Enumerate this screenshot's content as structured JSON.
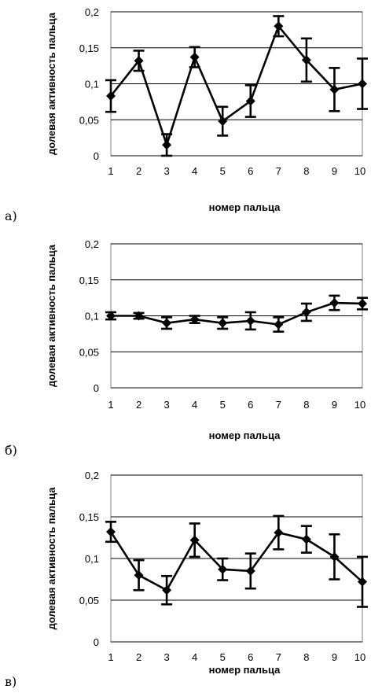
{
  "chart_data": [
    {
      "type": "line",
      "panel_label": "а)",
      "xlabel": "номер пальца",
      "ylabel": "долевая активность пальца",
      "x": [
        "1",
        "2",
        "3",
        "4",
        "5",
        "6",
        "7",
        "8",
        "9",
        "10"
      ],
      "y_ticks": [
        "0",
        "0,05",
        "0,1",
        "0,15",
        "0,2"
      ],
      "ylim": [
        0,
        0.2
      ],
      "grid": "horizontal",
      "series": [
        {
          "values": [
            0.083,
            0.132,
            0.015,
            0.137,
            0.048,
            0.076,
            0.18,
            0.133,
            0.092,
            0.1
          ],
          "error": [
            0.022,
            0.014,
            0.015,
            0.014,
            0.02,
            0.022,
            0.014,
            0.03,
            0.03,
            0.035
          ]
        }
      ]
    },
    {
      "type": "line",
      "panel_label": "б)",
      "xlabel": "номер пальца",
      "ylabel": "долевая активность пальца",
      "x": [
        "1",
        "2",
        "3",
        "4",
        "5",
        "6",
        "7",
        "8",
        "9",
        "10"
      ],
      "y_ticks": [
        "0",
        "0,05",
        "0,1",
        "0,15",
        "0,2"
      ],
      "ylim": [
        0,
        0.2
      ],
      "grid": "horizontal",
      "series": [
        {
          "values": [
            0.1,
            0.1,
            0.09,
            0.095,
            0.09,
            0.093,
            0.088,
            0.105,
            0.118,
            0.117
          ],
          "error": [
            0.005,
            0.004,
            0.008,
            0.005,
            0.008,
            0.012,
            0.01,
            0.012,
            0.01,
            0.008
          ]
        }
      ]
    },
    {
      "type": "line",
      "panel_label": "в)",
      "xlabel": "номер пальца",
      "ylabel": "долевая активность пальца",
      "x": [
        "1",
        "2",
        "3",
        "4",
        "5",
        "6",
        "7",
        "8",
        "9",
        "10"
      ],
      "y_ticks": [
        "0",
        "0,05",
        "0,1",
        "0,15",
        "0,2"
      ],
      "ylim": [
        0,
        0.2
      ],
      "grid": "horizontal",
      "series": [
        {
          "values": [
            0.132,
            0.08,
            0.062,
            0.122,
            0.087,
            0.085,
            0.131,
            0.123,
            0.102,
            0.072
          ],
          "error": [
            0.012,
            0.018,
            0.017,
            0.02,
            0.013,
            0.021,
            0.02,
            0.016,
            0.027,
            0.03
          ]
        }
      ]
    }
  ]
}
